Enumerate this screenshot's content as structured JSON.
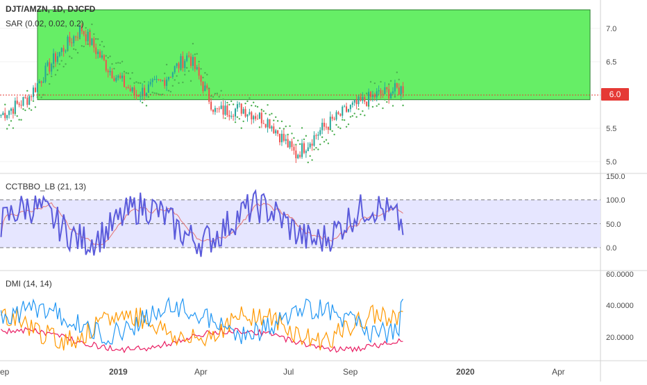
{
  "main_pane": {
    "symbol_line": "DJT/AMZN, 1D, DJCFD",
    "indicator_line": "SAR (0.02, 0.02, 0.2)",
    "price_badge": "6.0",
    "axis_ticks": [
      "7.0",
      "6.5",
      "6.0",
      "5.5",
      "5.0"
    ]
  },
  "cct_pane": {
    "label": "CCTBBO_LB (21, 13)",
    "axis_ticks": [
      "150.0",
      "100.0",
      "50.0",
      "0.0"
    ]
  },
  "dmi_pane": {
    "label": "DMI (14, 14)",
    "axis_ticks": [
      "60.0000",
      "40.0000",
      "20.0000"
    ]
  },
  "time_axis": {
    "labels": [
      "ep",
      "2019",
      "Apr",
      "Jul",
      "Sep",
      "2020",
      "Apr"
    ]
  },
  "colors": {
    "up_candle": "#26a69a",
    "down_candle": "#ef5350",
    "sar_dots": "#4caf50",
    "zone_fill": "#66ee66",
    "zone_border": "#2e7d32",
    "price_line": "#e53935",
    "cct_line": "#5b5bdb",
    "cct_signal": "#e57373",
    "cct_band": "#e6e6ff",
    "plus_di": "#2196f3",
    "minus_di": "#ff9800",
    "adx": "#e91e63"
  },
  "chart_data": [
    {
      "type": "candlestick",
      "name": "DJT/AMZN",
      "y_axis": {
        "ticks": [
          5.0,
          5.5,
          6.0,
          6.5,
          7.0
        ],
        "range": [
          4.9,
          7.3
        ]
      },
      "last_price": 6.0,
      "highlight_zone": {
        "y_range": [
          5.93,
          7.28
        ],
        "x_range": [
          "Nov 2018",
          "2020 (right edge)"
        ]
      },
      "series_description": "daily candles with parabolic SAR dots",
      "approx_path": [
        {
          "x": "Sep 2018",
          "y": 5.7
        },
        {
          "x": "Oct 2018",
          "y": 5.95
        },
        {
          "x": "late Nov 2018",
          "y": 6.55
        },
        {
          "x": "Dec 2018",
          "y": 7.0
        },
        {
          "x": "late Dec 2018",
          "y": 6.4
        },
        {
          "x": "Jan 2019",
          "y": 6.0
        },
        {
          "x": "Feb 2019",
          "y": 6.2
        },
        {
          "x": "Mar 2019",
          "y": 6.6
        },
        {
          "x": "Apr 2019",
          "y": 5.75
        },
        {
          "x": "May 2019",
          "y": 5.8
        },
        {
          "x": "Jun 2019",
          "y": 5.6
        },
        {
          "x": "Jul 2019",
          "y": 5.1
        },
        {
          "x": "Aug 2019",
          "y": 5.5
        },
        {
          "x": "Sep 2019",
          "y": 5.8
        },
        {
          "x": "Oct 2019",
          "y": 6.0
        },
        {
          "x": "Nov 2019",
          "y": 6.1
        }
      ]
    },
    {
      "type": "line",
      "name": "CCTBBO_LB (21, 13)",
      "y_axis": {
        "ticks": [
          0,
          50,
          100,
          150
        ],
        "range": [
          -40,
          150
        ]
      },
      "band": [
        0,
        100
      ],
      "midline": 50
    },
    {
      "type": "line",
      "name": "DMI (14, 14)",
      "y_axis": {
        "ticks": [
          20,
          40,
          60
        ],
        "range": [
          8,
          62
        ]
      }
    }
  ]
}
